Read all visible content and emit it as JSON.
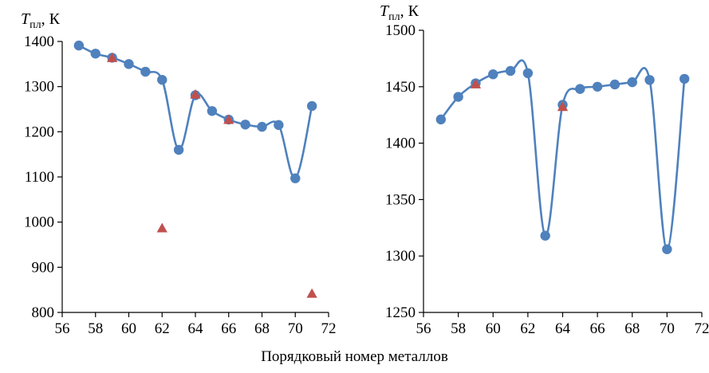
{
  "xlabel": "Порядковый номер металлов",
  "colors": {
    "line": "#4f81bd",
    "marker": "#4f81bd",
    "triangle": "#c0504d"
  },
  "chart_data": [
    {
      "type": "line",
      "ylabel": {
        "symbol": "T",
        "subscript": "пл",
        "unit": ", К"
      },
      "xlim": [
        56,
        72
      ],
      "ylim": [
        800,
        1400
      ],
      "xticks": [
        56,
        58,
        60,
        62,
        64,
        66,
        68,
        70,
        72
      ],
      "yticks": [
        800,
        900,
        1000,
        1100,
        1200,
        1300,
        1400
      ],
      "grid": false,
      "series": [
        {
          "marker": "circle",
          "smooth": true,
          "x": [
            57,
            58,
            59,
            60,
            61,
            62,
            63,
            64,
            65,
            66,
            67,
            68,
            69,
            70,
            71
          ],
          "y": [
            1391,
            1373,
            1364,
            1350,
            1333,
            1315,
            1160,
            1281,
            1246,
            1227,
            1216,
            1211,
            1215,
            1097,
            1257
          ]
        },
        {
          "marker": "triangle",
          "line": false,
          "x": [
            59,
            62,
            64,
            66,
            71
          ],
          "y": [
            1363,
            986,
            1282,
            1226,
            841
          ]
        }
      ]
    },
    {
      "type": "line",
      "ylabel": {
        "symbol": "T",
        "subscript": "пл",
        "unit": ", К"
      },
      "xlim": [
        56,
        72
      ],
      "ylim": [
        1250,
        1500
      ],
      "xticks": [
        56,
        58,
        60,
        62,
        64,
        66,
        68,
        70,
        72
      ],
      "yticks": [
        1250,
        1300,
        1350,
        1400,
        1450,
        1500
      ],
      "grid": false,
      "series": [
        {
          "marker": "circle",
          "smooth": true,
          "x": [
            57,
            58,
            59,
            60,
            61,
            62,
            63,
            64,
            65,
            66,
            67,
            68,
            69,
            70,
            71
          ],
          "y": [
            1421,
            1441,
            1453,
            1461,
            1464,
            1462,
            1318,
            1434,
            1448,
            1450,
            1452,
            1454,
            1456,
            1306,
            1457
          ]
        },
        {
          "marker": "triangle",
          "line": false,
          "x": [
            59,
            64
          ],
          "y": [
            1452,
            1432
          ]
        }
      ]
    }
  ]
}
